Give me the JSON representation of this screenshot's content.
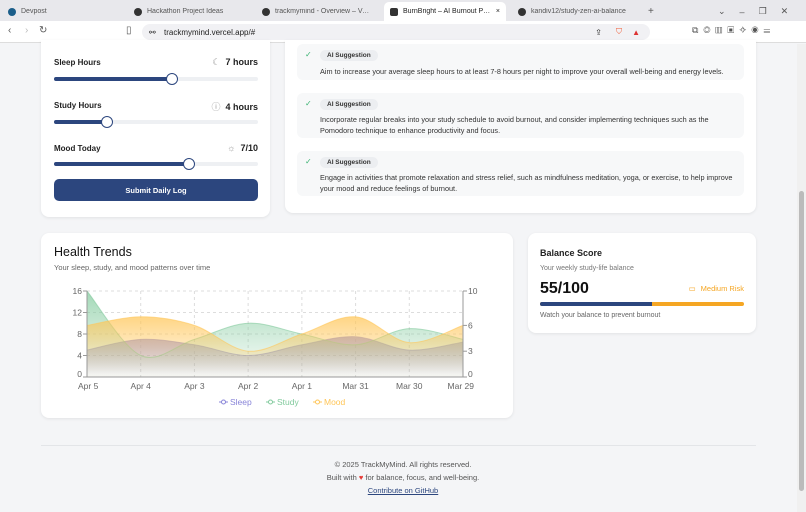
{
  "browser": {
    "tabs": [
      {
        "label": "Devpost"
      },
      {
        "label": "Hackathon Project Ideas"
      },
      {
        "label": "trackmymind - Overview – Vercel"
      },
      {
        "label": "BurnBright – AI Burnout Preven",
        "active": true
      },
      {
        "label": "kandiv12/study-zen-ai-balance"
      }
    ],
    "url": "trackmymind.vercel.app/#",
    "new_tab": "+"
  },
  "log": {
    "sliders": [
      {
        "label": "Sleep Hours",
        "value": "7 hours",
        "icon": "moon-icon",
        "fill": 0.58
      },
      {
        "label": "Study Hours",
        "value": "4 hours",
        "icon": "book-icon",
        "fill": 0.26
      },
      {
        "label": "Mood Today",
        "value": "7/10",
        "icon": "sun-icon",
        "fill": 0.66
      }
    ],
    "submit": "Submit Daily Log"
  },
  "suggestions": [
    {
      "badge": "AI Suggestion",
      "text": "Aim to increase your average sleep hours to at least 7-8 hours per night to improve your overall well-being and energy levels."
    },
    {
      "badge": "AI Suggestion",
      "text": "Incorporate regular breaks into your study schedule to avoid burnout, and consider implementing techniques such as the Pomodoro technique to enhance productivity and focus."
    },
    {
      "badge": "AI Suggestion",
      "text": "Engage in activities that promote relaxation and stress relief, such as mindfulness meditation, yoga, or exercise, to help improve your mood and reduce feelings of burnout."
    }
  ],
  "trends": {
    "title": "Health Trends",
    "subtitle": "Your sleep, study, and mood patterns over time"
  },
  "chart_data": {
    "type": "area",
    "categories": [
      "Apr 5",
      "Apr 4",
      "Apr 3",
      "Apr 2",
      "Apr 1",
      "Mar 31",
      "Mar 30",
      "Mar 29"
    ],
    "series": [
      {
        "name": "Sleep",
        "axis": "left",
        "color": "#8884d8",
        "values": [
          5,
          7,
          6,
          4,
          6,
          7.5,
          5,
          6.5
        ]
      },
      {
        "name": "Study",
        "axis": "left",
        "color": "#82ca9d",
        "values": [
          16,
          4,
          7,
          10,
          8,
          6,
          9,
          7
        ]
      },
      {
        "name": "Mood",
        "axis": "right",
        "color": "#ffc658",
        "values": [
          6,
          7,
          6,
          3,
          5,
          7,
          4,
          6
        ]
      }
    ],
    "yleft": {
      "range": [
        0,
        16
      ],
      "ticks": [
        "0",
        "4",
        "8",
        "12",
        "16"
      ]
    },
    "yright": {
      "range": [
        0,
        10
      ],
      "ticks": [
        "0",
        "3",
        "6",
        "10"
      ]
    },
    "grid": true,
    "legend": "bottom"
  },
  "balance": {
    "title": "Balance Score",
    "subtitle": "Your weekly study-life balance",
    "score": "55/100",
    "score_fraction": 0.55,
    "risk": "Medium Risk",
    "note": "Watch your balance to prevent burnout",
    "colors": {
      "fill": "#2c467e",
      "rest": "#f5a623",
      "risk": "#f5a623"
    }
  },
  "footer": {
    "copyright": "© 2025 TrackMyMind. All rights reserved.",
    "built_pre": "Built with",
    "built_post": "for balance, focus, and well-being.",
    "link": "Contribute on GitHub"
  }
}
